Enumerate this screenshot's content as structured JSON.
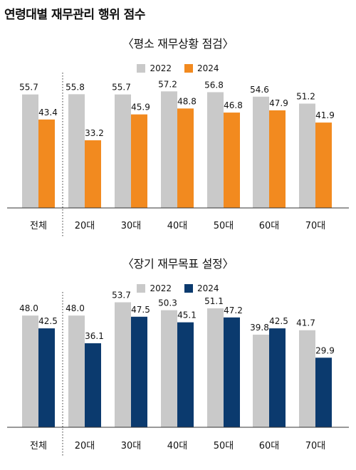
{
  "page_title": "연령대별 재무관리 행위 점수",
  "colors": {
    "series_2022": "#c9c9c9",
    "orange": "#f28a1f",
    "navy": "#0b3a6e",
    "axis": "#333333"
  },
  "chart_data": [
    {
      "type": "bar",
      "title": "〈평소 재무상황 점검〉",
      "categories": [
        "전체",
        "20대",
        "30대",
        "40대",
        "50대",
        "60대",
        "70대"
      ],
      "series": [
        {
          "name": "2022",
          "values": [
            55.7,
            55.8,
            55.7,
            57.2,
            56.8,
            54.6,
            51.2
          ]
        },
        {
          "name": "2024",
          "values": [
            43.4,
            33.2,
            45.9,
            48.8,
            46.8,
            47.9,
            41.9
          ]
        }
      ],
      "ylim": [
        0,
        65
      ],
      "grid": false,
      "legend": "top-center"
    },
    {
      "type": "bar",
      "title": "〈장기 재무목표 설정〉",
      "categories": [
        "전체",
        "20대",
        "30대",
        "40대",
        "50대",
        "60대",
        "70대"
      ],
      "series": [
        {
          "name": "2022",
          "values": [
            48.0,
            48.0,
            53.7,
            50.3,
            51.1,
            39.8,
            41.7
          ]
        },
        {
          "name": "2024",
          "values": [
            42.5,
            36.1,
            47.5,
            45.1,
            47.2,
            42.5,
            29.9
          ]
        }
      ],
      "ylim": [
        0,
        56
      ],
      "grid": false,
      "legend": "top-center"
    }
  ]
}
